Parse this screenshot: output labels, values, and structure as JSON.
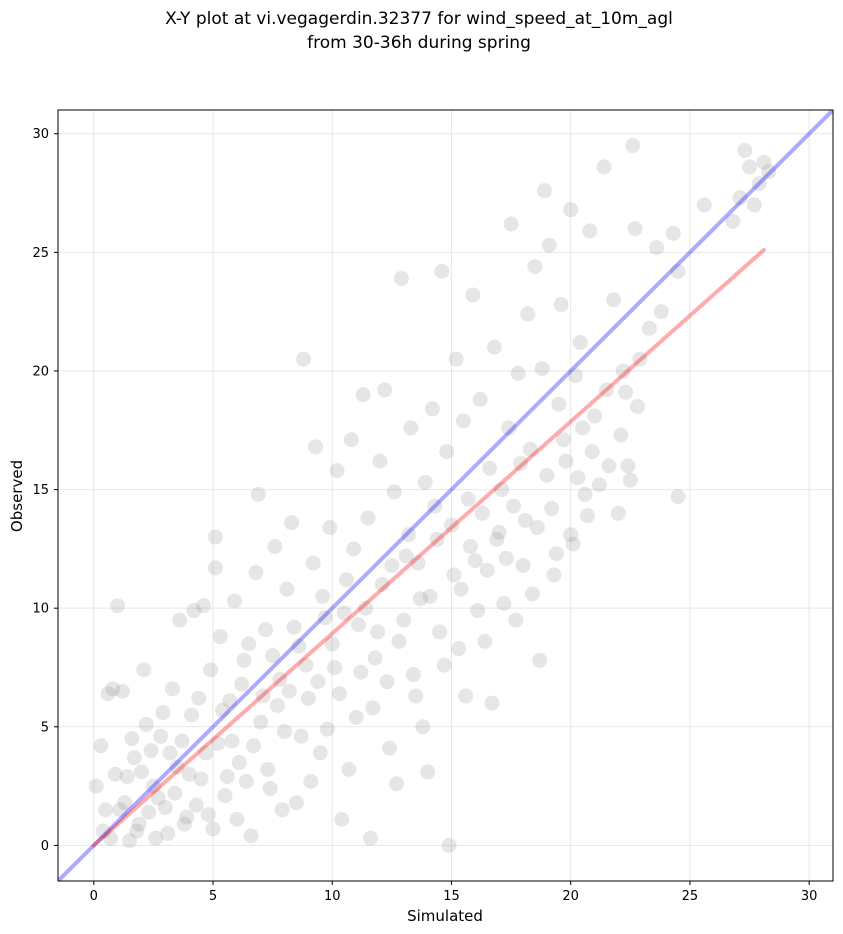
{
  "chart_data": {
    "type": "scatter",
    "title_line1": "X-Y plot at vi.vegagerdin.32377 for wind_speed_at_10m_agl",
    "title_line2": "from 30-36h during spring",
    "xlabel": "Simulated",
    "ylabel": "Observed",
    "xlim": [
      -1.5,
      31
    ],
    "ylim": [
      -1.5,
      31
    ],
    "xticks": [
      0,
      5,
      10,
      15,
      20,
      25,
      30
    ],
    "yticks": [
      0,
      5,
      10,
      15,
      20,
      25,
      30
    ],
    "grid": true,
    "point_color": "#808080",
    "identity_line": {
      "color": "#0000ff",
      "from": [
        -1.5,
        -1.5
      ],
      "to": [
        31,
        31
      ]
    },
    "fit_line": {
      "color": "#ff0000",
      "from": [
        0,
        0
      ],
      "to": [
        28.1,
        25.1
      ]
    },
    "points": [
      [
        0.1,
        2.5
      ],
      [
        0.3,
        4.2
      ],
      [
        0.5,
        1.5
      ],
      [
        0.6,
        6.4
      ],
      [
        0.8,
        6.6
      ],
      [
        1.0,
        10.1
      ],
      [
        1.2,
        6.5
      ],
      [
        0.9,
        3.0
      ],
      [
        0.4,
        0.6
      ],
      [
        1.5,
        0.2
      ],
      [
        1.3,
        1.8
      ],
      [
        1.7,
        3.7
      ],
      [
        2.1,
        7.4
      ],
      [
        2.2,
        5.1
      ],
      [
        1.9,
        0.9
      ],
      [
        2.5,
        2.5
      ],
      [
        2.8,
        4.6
      ],
      [
        3.1,
        0.5
      ],
      [
        3.3,
        6.6
      ],
      [
        3.5,
        3.3
      ],
      [
        3.6,
        9.5
      ],
      [
        3.9,
        1.2
      ],
      [
        4.1,
        5.5
      ],
      [
        4.2,
        9.9
      ],
      [
        4.5,
        2.8
      ],
      [
        4.6,
        10.1
      ],
      [
        4.9,
        7.4
      ],
      [
        5.0,
        0.7
      ],
      [
        5.1,
        11.7
      ],
      [
        5.1,
        13.0
      ],
      [
        5.2,
        4.3
      ],
      [
        5.3,
        8.8
      ],
      [
        5.5,
        2.1
      ],
      [
        5.7,
        6.1
      ],
      [
        5.9,
        10.3
      ],
      [
        6.1,
        3.5
      ],
      [
        6.3,
        7.8
      ],
      [
        6.6,
        0.4
      ],
      [
        6.8,
        11.5
      ],
      [
        6.9,
        14.8
      ],
      [
        7.0,
        5.2
      ],
      [
        7.2,
        9.1
      ],
      [
        7.4,
        2.4
      ],
      [
        7.6,
        12.6
      ],
      [
        7.8,
        7.0
      ],
      [
        8.0,
        4.8
      ],
      [
        8.1,
        10.8
      ],
      [
        8.3,
        13.6
      ],
      [
        8.5,
        1.8
      ],
      [
        8.6,
        8.4
      ],
      [
        8.8,
        20.5
      ],
      [
        9.0,
        6.2
      ],
      [
        9.2,
        11.9
      ],
      [
        9.3,
        16.8
      ],
      [
        9.5,
        3.9
      ],
      [
        9.7,
        9.6
      ],
      [
        9.9,
        13.4
      ],
      [
        10.1,
        7.5
      ],
      [
        10.2,
        15.8
      ],
      [
        10.4,
        1.1
      ],
      [
        10.6,
        11.2
      ],
      [
        10.8,
        17.1
      ],
      [
        11.0,
        5.4
      ],
      [
        11.1,
        9.3
      ],
      [
        11.3,
        19.0
      ],
      [
        11.5,
        13.8
      ],
      [
        11.6,
        0.3
      ],
      [
        11.8,
        7.9
      ],
      [
        12.0,
        16.2
      ],
      [
        12.1,
        11.0
      ],
      [
        12.2,
        19.2
      ],
      [
        12.4,
        4.1
      ],
      [
        12.6,
        14.9
      ],
      [
        12.8,
        8.6
      ],
      [
        12.9,
        23.9
      ],
      [
        13.1,
        12.2
      ],
      [
        13.3,
        17.6
      ],
      [
        13.5,
        6.3
      ],
      [
        13.7,
        10.4
      ],
      [
        13.9,
        15.3
      ],
      [
        14.0,
        3.1
      ],
      [
        14.2,
        18.4
      ],
      [
        14.4,
        12.9
      ],
      [
        14.5,
        9.0
      ],
      [
        14.6,
        24.2
      ],
      [
        14.8,
        16.6
      ],
      [
        14.9,
        0.0
      ],
      [
        15.0,
        13.5
      ],
      [
        15.2,
        20.5
      ],
      [
        15.4,
        10.8
      ],
      [
        15.5,
        17.9
      ],
      [
        15.6,
        6.3
      ],
      [
        15.7,
        14.6
      ],
      [
        15.9,
        23.2
      ],
      [
        16.0,
        12.0
      ],
      [
        16.2,
        18.8
      ],
      [
        16.4,
        8.6
      ],
      [
        16.6,
        15.9
      ],
      [
        16.8,
        21.0
      ],
      [
        17.0,
        13.2
      ],
      [
        17.2,
        10.2
      ],
      [
        17.4,
        17.6
      ],
      [
        17.5,
        26.2
      ],
      [
        17.6,
        14.3
      ],
      [
        17.8,
        19.9
      ],
      [
        18.0,
        11.8
      ],
      [
        18.2,
        22.4
      ],
      [
        18.3,
        16.7
      ],
      [
        18.5,
        24.4
      ],
      [
        18.6,
        13.4
      ],
      [
        18.7,
        7.8
      ],
      [
        18.8,
        20.1
      ],
      [
        18.9,
        27.6
      ],
      [
        19.0,
        15.6
      ],
      [
        19.1,
        25.3
      ],
      [
        19.3,
        11.4
      ],
      [
        19.5,
        18.6
      ],
      [
        19.6,
        22.8
      ],
      [
        19.8,
        16.2
      ],
      [
        20.0,
        26.8
      ],
      [
        20.0,
        13.1
      ],
      [
        20.2,
        19.8
      ],
      [
        20.4,
        21.2
      ],
      [
        20.6,
        14.8
      ],
      [
        20.8,
        25.9
      ],
      [
        21.0,
        18.1
      ],
      [
        21.4,
        28.6
      ],
      [
        21.6,
        16.0
      ],
      [
        21.8,
        23.0
      ],
      [
        22.0,
        14.0
      ],
      [
        22.2,
        20.0
      ],
      [
        22.4,
        16.0
      ],
      [
        22.6,
        29.5
      ],
      [
        22.7,
        26.0
      ],
      [
        22.9,
        20.5
      ],
      [
        23.3,
        21.8
      ],
      [
        23.6,
        25.2
      ],
      [
        23.8,
        22.5
      ],
      [
        24.3,
        25.8
      ],
      [
        24.5,
        14.7
      ],
      [
        24.5,
        24.2
      ],
      [
        25.6,
        27.0
      ],
      [
        26.8,
        26.3
      ],
      [
        27.1,
        27.3
      ],
      [
        27.3,
        29.3
      ],
      [
        27.5,
        28.6
      ],
      [
        27.7,
        27.0
      ],
      [
        27.9,
        27.9
      ],
      [
        28.1,
        28.8
      ],
      [
        28.3,
        28.4
      ],
      [
        0.7,
        0.3
      ],
      [
        1.1,
        1.5
      ],
      [
        1.4,
        2.9
      ],
      [
        1.6,
        4.5
      ],
      [
        1.8,
        0.6
      ],
      [
        2.0,
        3.1
      ],
      [
        2.3,
        1.4
      ],
      [
        2.4,
        4.0
      ],
      [
        2.6,
        0.3
      ],
      [
        2.7,
        2.0
      ],
      [
        2.9,
        5.6
      ],
      [
        3.0,
        1.6
      ],
      [
        3.2,
        3.9
      ],
      [
        3.4,
        2.2
      ],
      [
        3.7,
        4.4
      ],
      [
        3.8,
        0.9
      ],
      [
        4.0,
        3.0
      ],
      [
        4.3,
        1.7
      ],
      [
        4.4,
        6.2
      ],
      [
        4.7,
        3.9
      ],
      [
        4.8,
        1.3
      ],
      [
        5.4,
        5.7
      ],
      [
        5.6,
        2.9
      ],
      [
        5.8,
        4.4
      ],
      [
        6.0,
        1.1
      ],
      [
        6.2,
        6.8
      ],
      [
        6.4,
        2.7
      ],
      [
        6.5,
        8.5
      ],
      [
        6.7,
        4.2
      ],
      [
        7.1,
        6.3
      ],
      [
        7.3,
        3.2
      ],
      [
        7.5,
        8.0
      ],
      [
        7.7,
        5.9
      ],
      [
        7.9,
        1.5
      ],
      [
        8.2,
        6.5
      ],
      [
        8.4,
        9.2
      ],
      [
        8.7,
        4.6
      ],
      [
        8.9,
        7.6
      ],
      [
        9.1,
        2.7
      ],
      [
        9.4,
        6.9
      ],
      [
        9.6,
        10.5
      ],
      [
        9.8,
        4.9
      ],
      [
        10.0,
        8.5
      ],
      [
        10.3,
        6.4
      ],
      [
        10.5,
        9.8
      ],
      [
        10.7,
        3.2
      ],
      [
        10.9,
        12.5
      ],
      [
        11.2,
        7.3
      ],
      [
        11.4,
        10.0
      ],
      [
        11.7,
        5.8
      ],
      [
        11.9,
        9.0
      ],
      [
        12.3,
        6.9
      ],
      [
        12.5,
        11.8
      ],
      [
        12.7,
        2.6
      ],
      [
        13.0,
        9.5
      ],
      [
        13.2,
        13.1
      ],
      [
        13.4,
        7.2
      ],
      [
        13.6,
        11.9
      ],
      [
        13.8,
        5.0
      ],
      [
        14.1,
        10.5
      ],
      [
        14.3,
        14.3
      ],
      [
        14.7,
        7.6
      ],
      [
        15.1,
        11.4
      ],
      [
        15.3,
        8.3
      ],
      [
        15.8,
        12.6
      ],
      [
        16.1,
        9.9
      ],
      [
        16.3,
        14.0
      ],
      [
        16.5,
        11.6
      ],
      [
        16.7,
        6.0
      ],
      [
        16.9,
        12.9
      ],
      [
        17.1,
        15.0
      ],
      [
        17.3,
        12.1
      ],
      [
        17.7,
        9.5
      ],
      [
        17.9,
        16.1
      ],
      [
        18.1,
        13.7
      ],
      [
        18.4,
        10.6
      ],
      [
        19.2,
        14.2
      ],
      [
        19.4,
        12.3
      ],
      [
        19.7,
        17.1
      ],
      [
        20.1,
        12.7
      ],
      [
        20.3,
        15.5
      ],
      [
        20.5,
        17.6
      ],
      [
        20.7,
        13.9
      ],
      [
        20.9,
        16.6
      ],
      [
        21.2,
        15.2
      ],
      [
        21.5,
        19.2
      ],
      [
        22.1,
        17.3
      ],
      [
        22.3,
        19.1
      ],
      [
        22.5,
        15.4
      ],
      [
        22.8,
        18.5
      ]
    ]
  }
}
